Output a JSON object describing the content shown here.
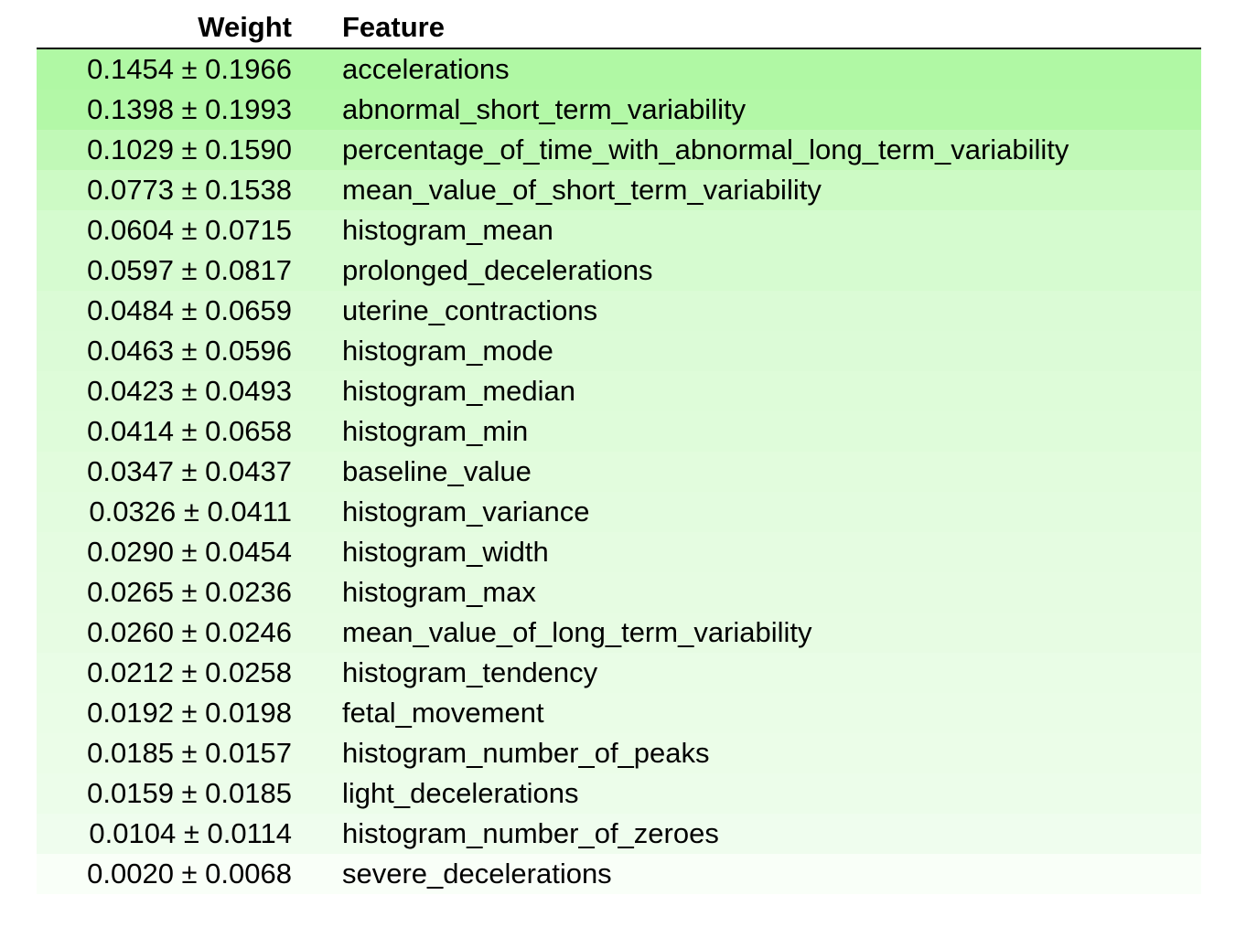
{
  "table": {
    "headers": {
      "weight": "Weight",
      "feature": "Feature"
    },
    "rows": [
      {
        "weight": "0.1454 ± 0.1966",
        "feature": "accelerations",
        "bg": "#b0f8a4"
      },
      {
        "weight": "0.1398 ± 0.1993",
        "feature": "abnormal_short_term_variability",
        "bg": "#b3f8a7"
      },
      {
        "weight": "0.1029 ± 0.1590",
        "feature": "percentage_of_time_with_abnormal_long_term_variability",
        "bg": "#c1f9b7"
      },
      {
        "weight": "0.0773 ± 0.1538",
        "feature": "mean_value_of_short_term_variability",
        "bg": "#cdfac5"
      },
      {
        "weight": "0.0604 ± 0.0715",
        "feature": "histogram_mean",
        "bg": "#d5fbcf"
      },
      {
        "weight": "0.0597 ± 0.0817",
        "feature": "prolonged_decelerations",
        "bg": "#d6fbd0"
      },
      {
        "weight": "0.0484 ± 0.0659",
        "feature": "uterine_contractions",
        "bg": "#dbfbd6"
      },
      {
        "weight": "0.0463 ± 0.0596",
        "feature": "histogram_mode",
        "bg": "#dcfbd7"
      },
      {
        "weight": "0.0423 ± 0.0493",
        "feature": "histogram_median",
        "bg": "#defcd9"
      },
      {
        "weight": "0.0414 ± 0.0658",
        "feature": "histogram_min",
        "bg": "#dffcda"
      },
      {
        "weight": "0.0347 ± 0.0437",
        "feature": "baseline_value",
        "bg": "#e2fcdd"
      },
      {
        "weight": "0.0326 ± 0.0411",
        "feature": "histogram_variance",
        "bg": "#e3fcdf"
      },
      {
        "weight": "0.0290 ± 0.0454",
        "feature": "histogram_width",
        "bg": "#e5fce1"
      },
      {
        "weight": "0.0265 ± 0.0236",
        "feature": "histogram_max",
        "bg": "#e6fce2"
      },
      {
        "weight": "0.0260 ± 0.0246",
        "feature": "mean_value_of_long_term_variability",
        "bg": "#e7fce3"
      },
      {
        "weight": "0.0212 ± 0.0258",
        "feature": "histogram_tendency",
        "bg": "#e9fde6"
      },
      {
        "weight": "0.0192 ± 0.0198",
        "feature": "fetal_movement",
        "bg": "#eafde7"
      },
      {
        "weight": "0.0185 ± 0.0157",
        "feature": "histogram_number_of_peaks",
        "bg": "#ebfde8"
      },
      {
        "weight": "0.0159 ± 0.0185",
        "feature": "light_decelerations",
        "bg": "#ecfdea"
      },
      {
        "weight": "0.0104 ± 0.0114",
        "feature": "histogram_number_of_zeroes",
        "bg": "#effdee"
      },
      {
        "weight": "0.0020 ± 0.0068",
        "feature": "severe_decelerations",
        "bg": "#f9fff8"
      }
    ]
  }
}
